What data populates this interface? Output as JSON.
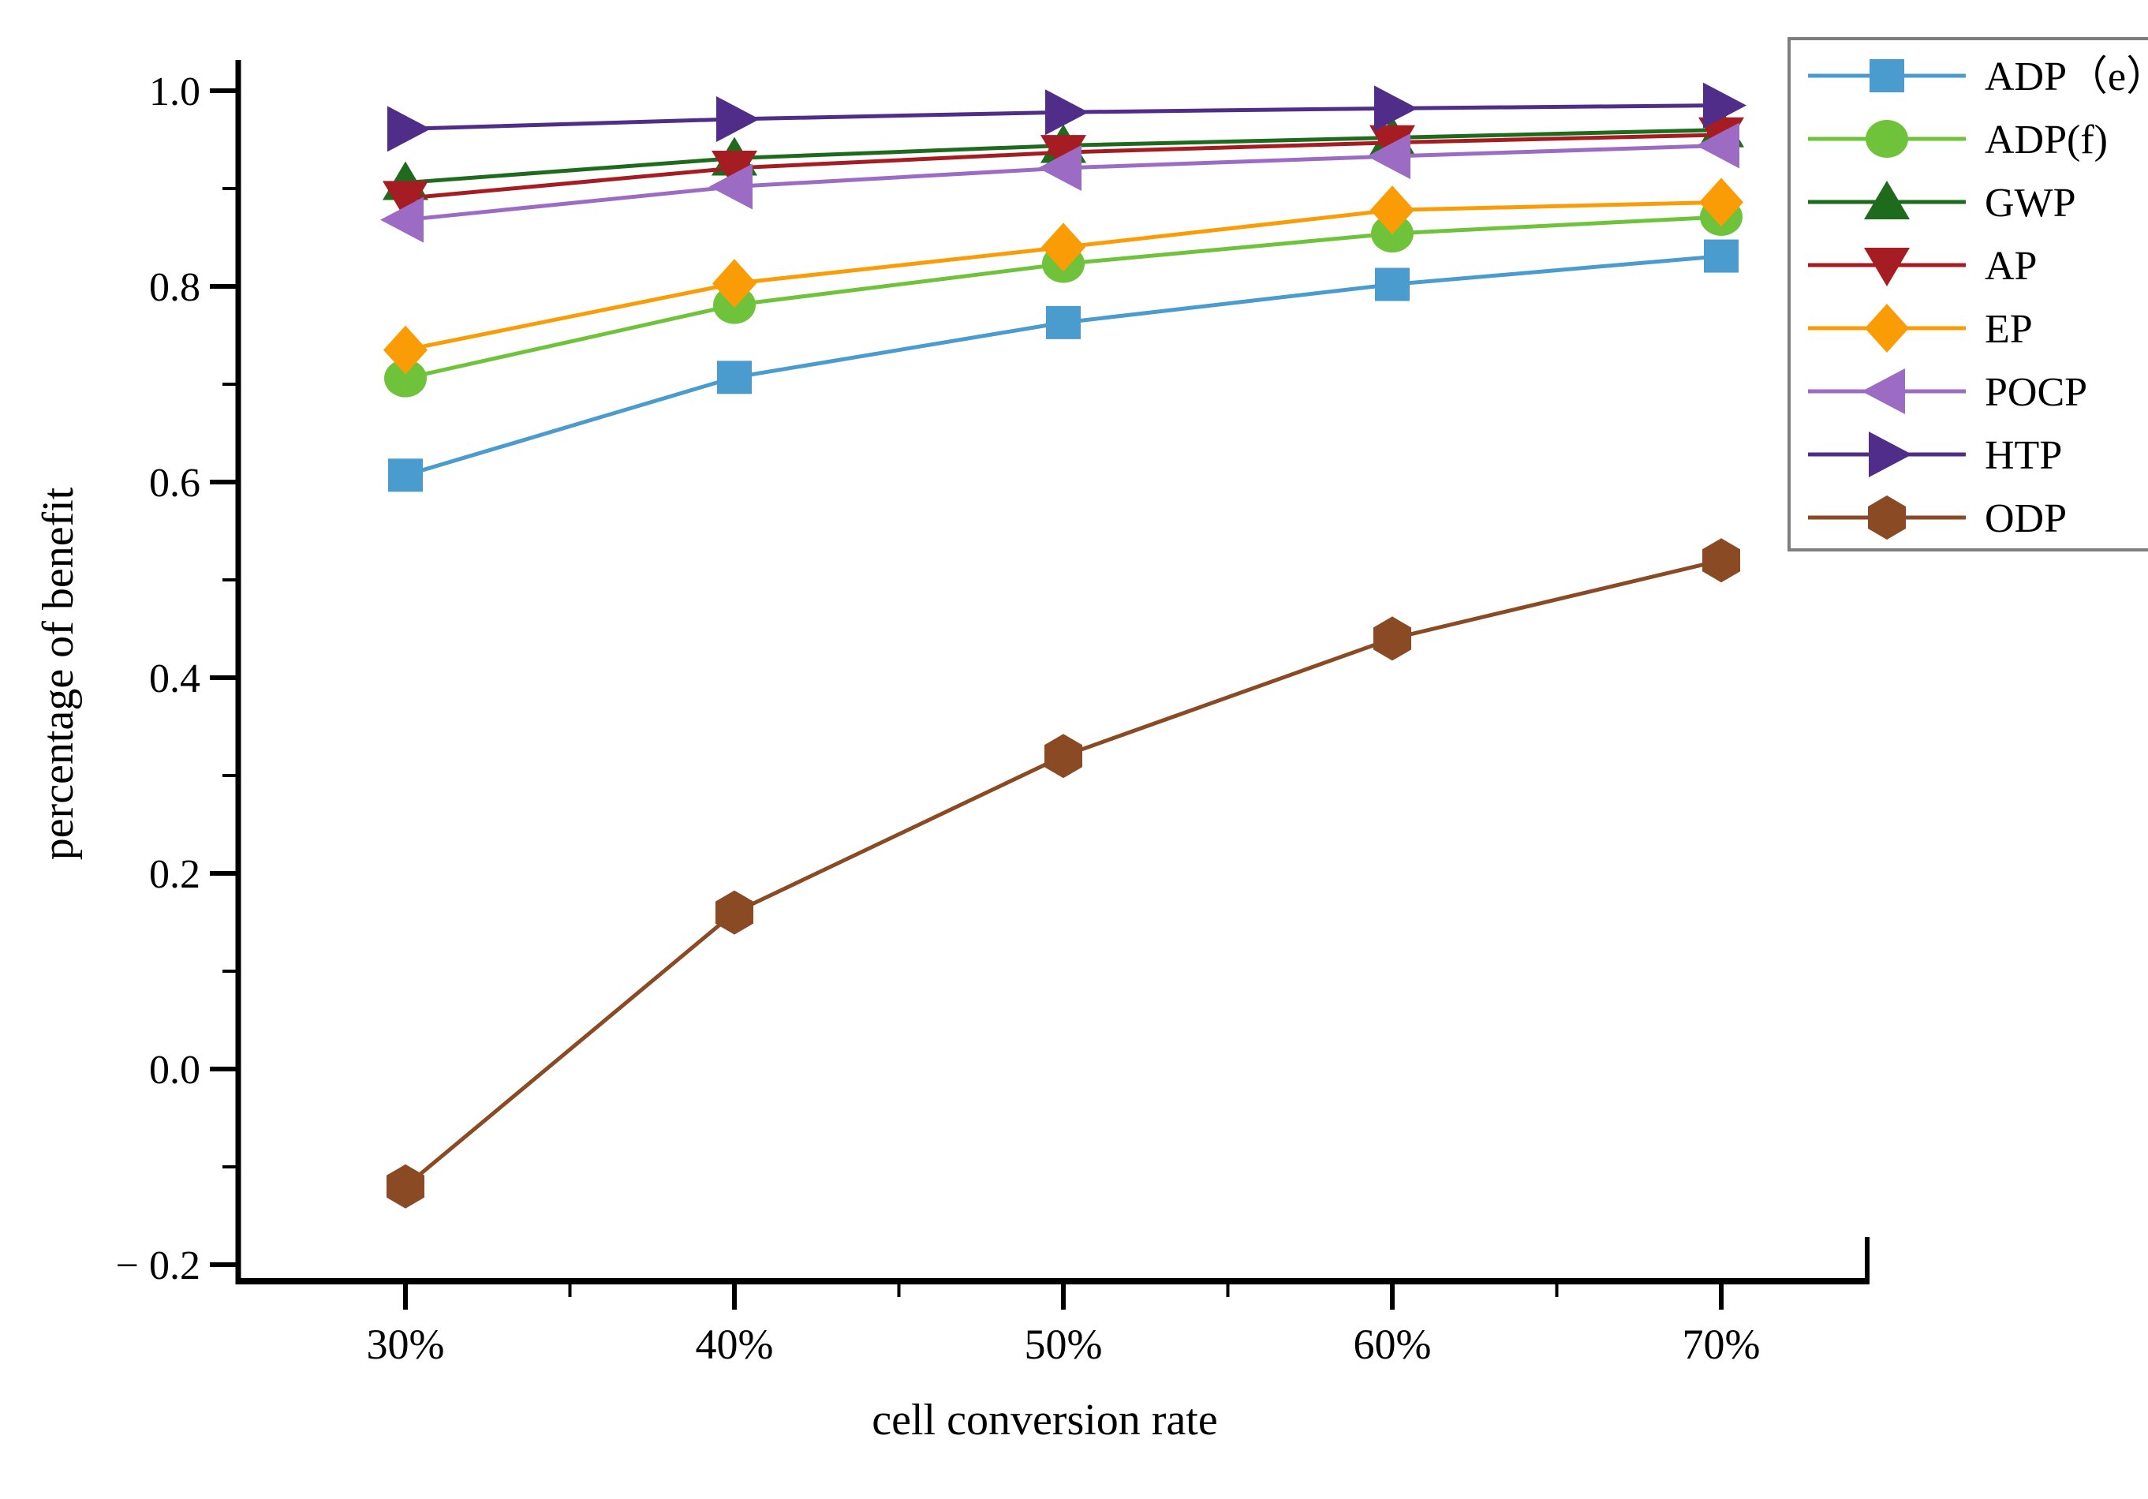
{
  "figure": {
    "background": "#ffffff",
    "text_color": "#000000",
    "legend_border_color": "#7f7f7f"
  },
  "chart_data": {
    "type": "line",
    "title": "",
    "xlabel": "cell conversion rate",
    "ylabel": "percentage of benefit",
    "categories": [
      "30%",
      "40%",
      "50%",
      "60%",
      "70%"
    ],
    "x_tick_labels": [
      "30%",
      "40%",
      "50%",
      "60%",
      "70%"
    ],
    "y_tick_values": [
      1.0,
      0.8,
      0.6,
      0.4,
      0.2,
      0.0,
      -0.2
    ],
    "y_tick_labels": [
      "1.0",
      "0.8",
      "0.6",
      "0.4",
      "0.2",
      "0.0",
      "− 0.2"
    ],
    "y_minor_tick_values": [
      0.9,
      0.7,
      0.5,
      0.3,
      0.1,
      -0.1
    ],
    "ylim": [
      -0.28,
      1.03
    ],
    "grid": false,
    "legend_position": "top-right",
    "series": [
      {
        "name": "ADP（e）",
        "marker": "square",
        "color": "#4a9bce",
        "values": [
          0.607,
          0.707,
          0.763,
          0.802,
          0.831
        ]
      },
      {
        "name": "ADP(f)",
        "marker": "circle",
        "color": "#6fc33a",
        "values": [
          0.706,
          0.781,
          0.823,
          0.854,
          0.871
        ]
      },
      {
        "name": "GWP",
        "marker": "triangle-up",
        "color": "#1e6b1e",
        "values": [
          0.906,
          0.931,
          0.944,
          0.952,
          0.96
        ]
      },
      {
        "name": "AP",
        "marker": "triangle-down",
        "color": "#a51d22",
        "values": [
          0.89,
          0.921,
          0.937,
          0.947,
          0.955
        ]
      },
      {
        "name": "EP",
        "marker": "diamond",
        "color": "#f99c06",
        "values": [
          0.735,
          0.803,
          0.84,
          0.878,
          0.886
        ]
      },
      {
        "name": "POCP",
        "marker": "triangle-left",
        "color": "#9c6bc3",
        "values": [
          0.868,
          0.902,
          0.921,
          0.933,
          0.944
        ]
      },
      {
        "name": "HTP",
        "marker": "triangle-right",
        "color": "#502d88",
        "values": [
          0.961,
          0.971,
          0.978,
          0.982,
          0.985
        ]
      },
      {
        "name": "ODP",
        "marker": "hexagon",
        "color": "#8a4b24",
        "values": [
          -0.12,
          0.16,
          0.32,
          0.44,
          0.52
        ]
      }
    ]
  }
}
